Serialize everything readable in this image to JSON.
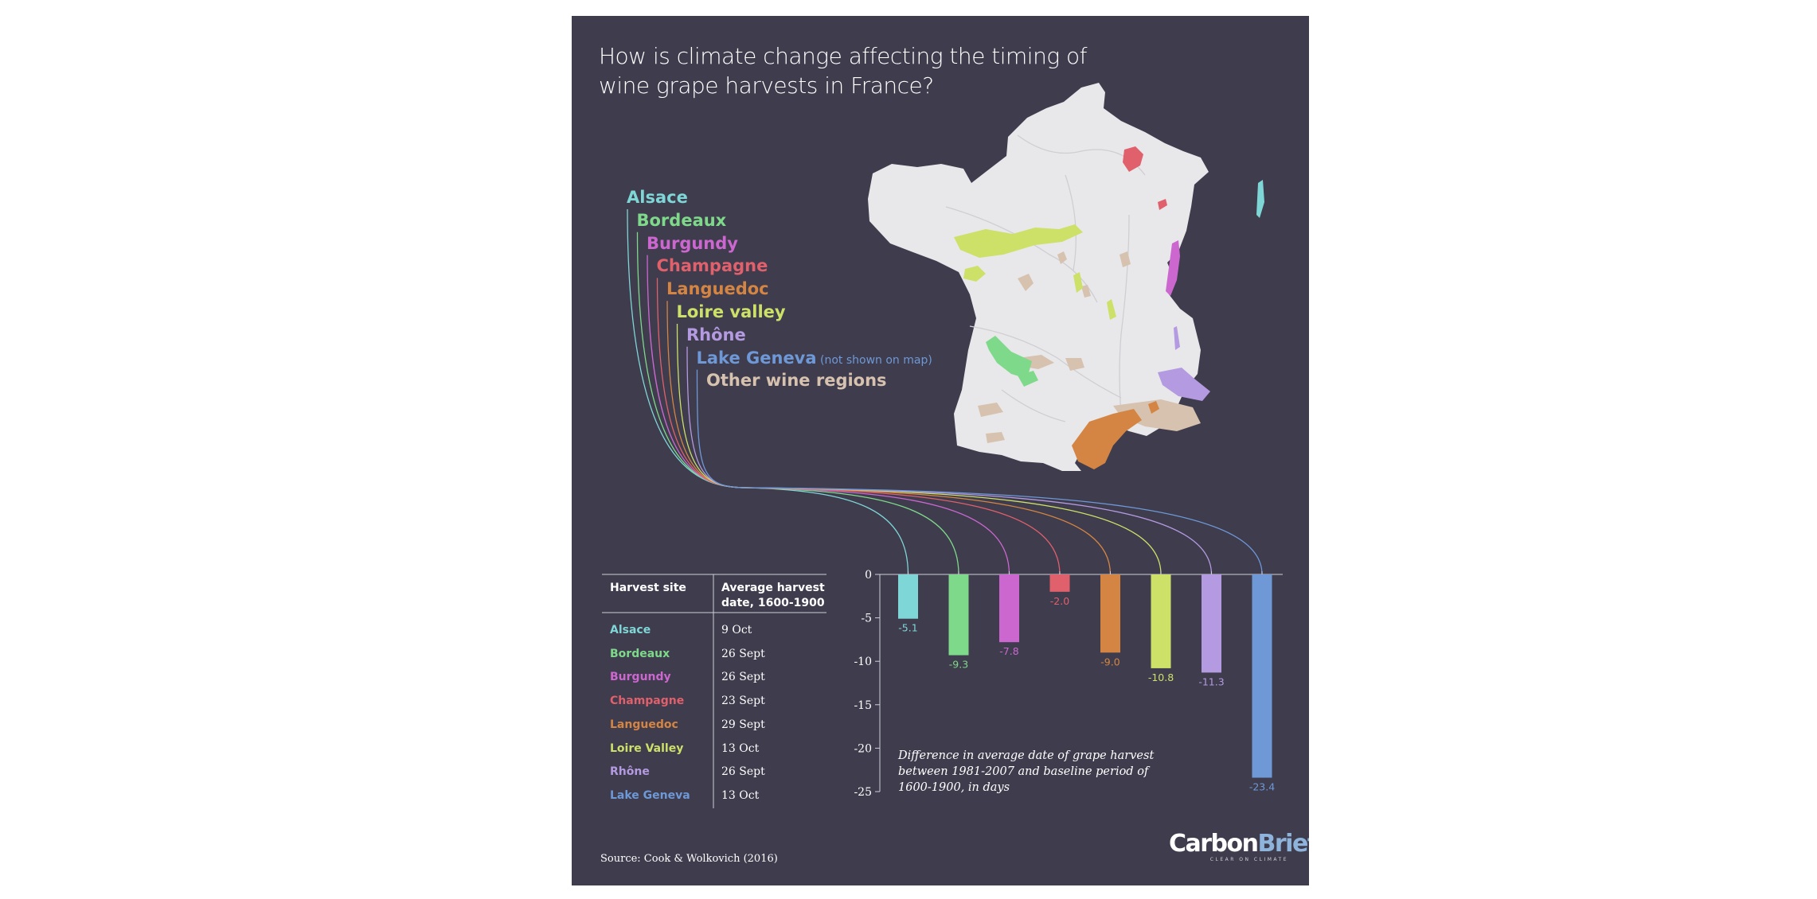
{
  "title_lines": [
    "How is climate change affecting the timing of",
    "wine grape harvests in France?"
  ],
  "legend": [
    {
      "label": "Alsace",
      "color": "#7fd6d6",
      "note": ""
    },
    {
      "label": "Bordeaux",
      "color": "#7fd98a",
      "note": ""
    },
    {
      "label": "Burgundy",
      "color": "#cd67d0",
      "note": ""
    },
    {
      "label": "Champagne",
      "color": "#e0606c",
      "note": ""
    },
    {
      "label": "Languedoc",
      "color": "#d48543",
      "note": ""
    },
    {
      "label": "Loire valley",
      "color": "#cde068",
      "note": ""
    },
    {
      "label": "Rhône",
      "color": "#b49ae0",
      "note": ""
    },
    {
      "label": "Lake Geneva",
      "color": "#6e98d6",
      "note": "(not shown on map)"
    },
    {
      "label": "Other wine regions",
      "color": "#d6c2ae",
      "note": ""
    }
  ],
  "table": {
    "header_site": "Harvest site",
    "header_date_line1": "Average harvest",
    "header_date_line2": "date, 1600-1900",
    "rows": [
      {
        "site": "Alsace",
        "date": "9 Oct",
        "color": "#7fd6d6"
      },
      {
        "site": "Bordeaux",
        "date": "26 Sept",
        "color": "#7fd98a"
      },
      {
        "site": "Burgundy",
        "date": "26 Sept",
        "color": "#cd67d0"
      },
      {
        "site": "Champagne",
        "date": "23 Sept",
        "color": "#e0606c"
      },
      {
        "site": "Languedoc",
        "date": "29 Sept",
        "color": "#d48543"
      },
      {
        "site": "Loire Valley",
        "date": "13 Oct",
        "color": "#cde068"
      },
      {
        "site": "Rhône",
        "date": "26 Sept",
        "color": "#b49ae0"
      },
      {
        "site": "Lake Geneva",
        "date": "13 Oct",
        "color": "#6e98d6"
      }
    ]
  },
  "chart_data": {
    "type": "bar",
    "categories": [
      "Alsace",
      "Bordeaux",
      "Burgundy",
      "Champagne",
      "Languedoc",
      "Loire Valley",
      "Rhône",
      "Lake Geneva"
    ],
    "values": [
      -5.1,
      -9.3,
      -7.8,
      -2.0,
      -9.0,
      -10.8,
      -11.3,
      -23.4
    ],
    "value_labels": [
      "-5.1",
      "-9.3",
      "-7.8",
      "-2.0",
      "-9.0",
      "-10.8",
      "-11.3",
      "-23.4"
    ],
    "colors": [
      "#7fd6d6",
      "#7fd98a",
      "#cd67d0",
      "#e0606c",
      "#d48543",
      "#cde068",
      "#b49ae0",
      "#6e98d6"
    ],
    "yticks": [
      0,
      -5,
      -10,
      -15,
      -20,
      -25
    ],
    "ytick_labels": [
      "0",
      "-5",
      "-10",
      "-15",
      "-20",
      "-25"
    ],
    "ylim": [
      -25,
      0
    ],
    "caption": "Difference in average date of grape harvest between 1981-2007 and baseline period of 1600-1900, in days"
  },
  "source": "Source: Cook & Wolkovich (2016)",
  "logo": {
    "carbon": "Carbon",
    "brief": "Brief",
    "tagline": "CLEAR ON CLIMATE"
  },
  "map_colors": {
    "land": "#e8e8ea",
    "rivers": "#cfcfd3",
    "bordeaux": "#7fd98a",
    "loire": "#cde068",
    "burgundy": "#cd67d0",
    "champagne": "#e0606c",
    "languedoc": "#d48543",
    "rhone": "#b49ae0",
    "alsace": "#7fd6d6",
    "other": "#d6c2ae"
  }
}
